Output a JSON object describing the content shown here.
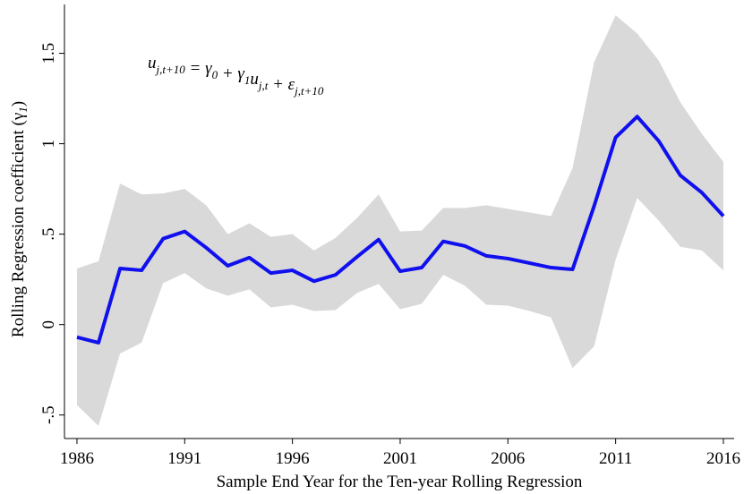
{
  "chart_data": {
    "type": "line",
    "x_label": "Sample End Year for the Ten-year Rolling Regression",
    "y_label": {
      "text": "Rolling Regression coefficient (γ",
      "sub": "1",
      "end": ")"
    },
    "annotation": [
      {
        "text": "u",
        "sub": "j,t+10"
      },
      {
        "text": " = γ",
        "sub": "0"
      },
      {
        "text": " + γ",
        "sub": "1"
      },
      {
        "text": "u",
        "sub": "j,t"
      },
      {
        "text": " + ε",
        "sub": "j,t+10"
      }
    ],
    "x": [
      1986,
      1987,
      1988,
      1989,
      1990,
      1991,
      1992,
      1993,
      1994,
      1995,
      1996,
      1997,
      1998,
      1999,
      2000,
      2001,
      2002,
      2003,
      2004,
      2005,
      2006,
      2007,
      2008,
      2009,
      2010,
      2011,
      2012,
      2013,
      2014,
      2015,
      2016
    ],
    "series": [
      {
        "color": "#1010ee",
        "values": [
          -0.07,
          -0.1,
          0.31,
          0.3,
          0.475,
          0.515,
          0.425,
          0.325,
          0.37,
          0.285,
          0.3,
          0.24,
          0.275,
          0.375,
          0.47,
          0.295,
          0.315,
          0.46,
          0.435,
          0.38,
          0.365,
          0.34,
          0.315,
          0.305,
          0.655,
          1.035,
          1.15,
          1.015,
          0.825,
          0.73,
          0.6
        ]
      }
    ],
    "band": {
      "color": "#d9d9d9",
      "upper": [
        0.31,
        0.35,
        0.78,
        0.72,
        0.725,
        0.75,
        0.66,
        0.5,
        0.56,
        0.485,
        0.5,
        0.41,
        0.48,
        0.59,
        0.72,
        0.515,
        0.52,
        0.645,
        0.645,
        0.66,
        0.64,
        0.62,
        0.6,
        0.865,
        1.45,
        1.71,
        1.61,
        1.46,
        1.23,
        1.055,
        0.9
      ],
      "lower": [
        -0.445,
        -0.56,
        -0.16,
        -0.1,
        0.23,
        0.285,
        0.2,
        0.16,
        0.195,
        0.095,
        0.11,
        0.075,
        0.08,
        0.175,
        0.225,
        0.085,
        0.115,
        0.275,
        0.215,
        0.11,
        0.105,
        0.075,
        0.04,
        -0.24,
        -0.12,
        0.36,
        0.7,
        0.575,
        0.43,
        0.41,
        0.3
      ]
    },
    "xlim": [
      1985.42,
      2016.5
    ],
    "xticks": [
      1986,
      1991,
      1996,
      2001,
      2006,
      2011,
      2016
    ],
    "ylim": [
      -0.63,
      1.77
    ],
    "yticks": [
      {
        "value": -0.5,
        "label": "-.5"
      },
      0,
      {
        "value": 0.5,
        "label": ".5"
      },
      1,
      1.5
    ]
  }
}
